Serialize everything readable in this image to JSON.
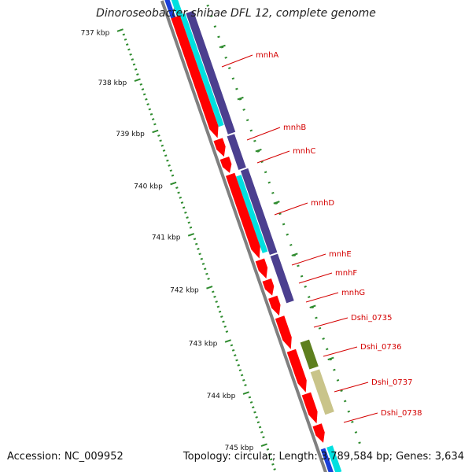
{
  "title": "Dinoroseobacter shibae DFL 12, complete genome",
  "footer": {
    "accession": "Accession: NC_009952",
    "summary": "Topology: circular; Length: 3,789,584 bp; Genes: 3,634"
  },
  "ruler": {
    "unit": "kbp",
    "ticks": [
      "737 kbp",
      "738 kbp",
      "739 kbp",
      "740 kbp",
      "741 kbp",
      "742 kbp",
      "743 kbp",
      "744 kbp",
      "745 kbp"
    ]
  },
  "colors": {
    "cds": "#ff0000",
    "cog_dark": "#4b3f8f",
    "cog_cyan": "#00e0e0",
    "cog_olive": "#5d7f1e",
    "cog_khaki": "#c9c48a",
    "backbone": "#808080",
    "tick": "#2e8b2e",
    "label": "#d40000"
  },
  "genes": [
    {
      "name": "mnhA"
    },
    {
      "name": "mnhB"
    },
    {
      "name": "mnhC"
    },
    {
      "name": "mnhD"
    },
    {
      "name": "mnhE"
    },
    {
      "name": "mnhF"
    },
    {
      "name": "mnhG"
    },
    {
      "name": "Dshi_0735"
    },
    {
      "name": "Dshi_0736"
    },
    {
      "name": "Dshi_0737"
    },
    {
      "name": "Dshi_0738"
    }
  ]
}
